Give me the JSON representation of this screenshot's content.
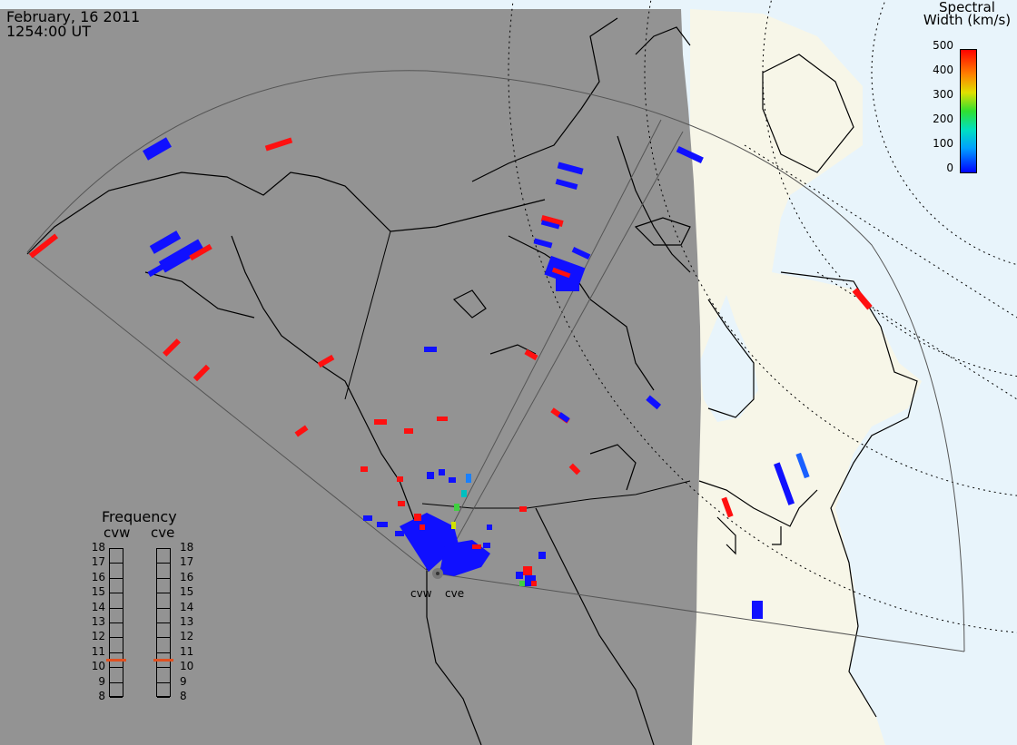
{
  "header": {
    "date": "February, 16 2011",
    "time": "1254:00 UT"
  },
  "legend": {
    "title_line1": "Spectral",
    "title_line2": "Width (km/s)",
    "ticks": [
      "500",
      "400",
      "300",
      "200",
      "100",
      "0"
    ]
  },
  "frequency": {
    "title": "Frequency",
    "radar_left": "cvw",
    "radar_right": "cve",
    "levels": [
      "18",
      "17",
      "16",
      "15",
      "14",
      "13",
      "12",
      "11",
      "10",
      "9",
      "8"
    ],
    "current_mhz": 10.5
  },
  "sites": [
    "cvw",
    "cve"
  ],
  "colors": {
    "night": "#939393",
    "day_land": "#f7f6e8",
    "day_ocean": "#e8f4fb",
    "scale_low": "#1010ff",
    "scale_high": "#ff1010",
    "freq_marker": "#e05020"
  }
}
